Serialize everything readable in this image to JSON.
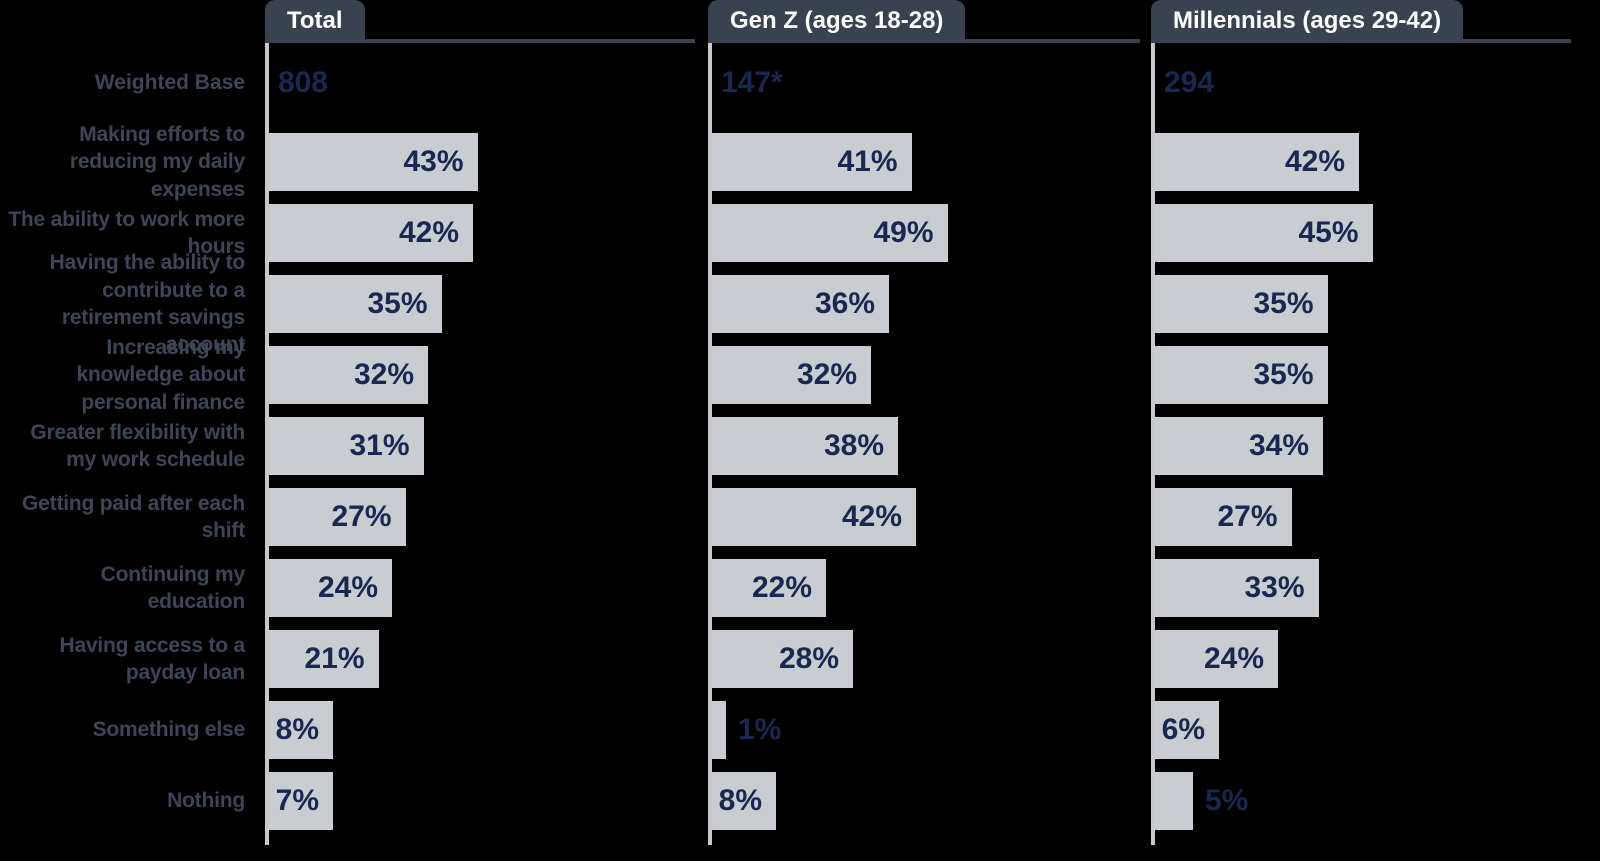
{
  "chart_data": {
    "type": "bar",
    "orientation": "horizontal",
    "weighted_base_label": "Weighted Base",
    "value_suffix": "%",
    "categories": [
      "Making efforts to reducing my daily expenses",
      "The ability to work more hours",
      "Having the ability to contribute to a retirement savings account",
      "Increasing my knowledge about personal finance",
      "Greater flexibility with my work schedule",
      "Getting paid after each shift",
      "Continuing my education",
      "Having access to a payday loan",
      "Something else",
      "Nothing"
    ],
    "columns": [
      {
        "header": "Total",
        "weighted_base": "808"
      },
      {
        "header": "Gen Z (ages 18-28)",
        "weighted_base": "147*"
      },
      {
        "header": "Millennials (ages 29-42)",
        "weighted_base": "294"
      }
    ],
    "series": [
      {
        "name": "Total",
        "values": [
          43,
          42,
          35,
          32,
          31,
          27,
          24,
          21,
          8,
          7
        ]
      },
      {
        "name": "Gen Z (ages 18-28)",
        "values": [
          41,
          49,
          36,
          32,
          38,
          42,
          22,
          28,
          1,
          8
        ]
      },
      {
        "name": "Millennials (ages 29-42)",
        "values": [
          42,
          45,
          35,
          35,
          34,
          27,
          33,
          24,
          6,
          5
        ]
      }
    ],
    "axis": {
      "value_min": 0,
      "value_max": 50,
      "gridlines": false,
      "legend": "none"
    },
    "colors": {
      "background": "#000000",
      "bar": "#c9ccd0",
      "value_text": "#182850",
      "tab_bg": "#3a4250",
      "tab_text": "#ffffff",
      "axis_line": "#c7c7cc",
      "category_label": "#3d4556"
    }
  }
}
